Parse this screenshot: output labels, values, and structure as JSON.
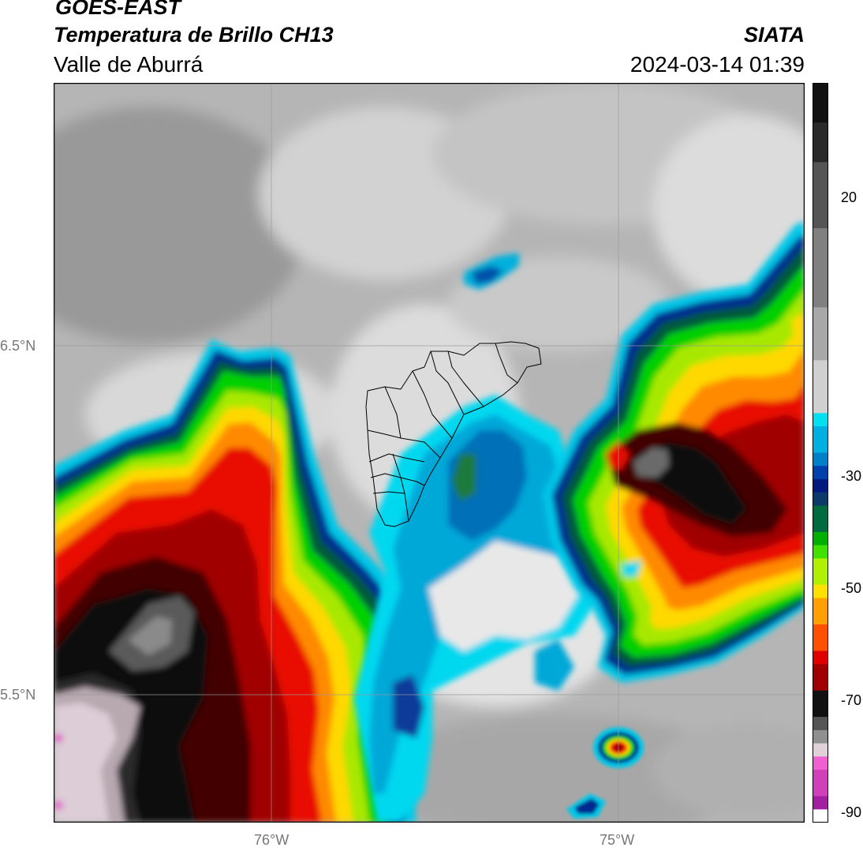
{
  "header": {
    "satellite": "GOES-EAST",
    "product": "Temperatura de Brillo CH13",
    "region": "Valle de Aburrá",
    "source": "SIATA",
    "datetime": "2024-03-14 01:39"
  },
  "map": {
    "lat_labels": [
      "6.5°N",
      "5.5°N"
    ],
    "lon_labels": [
      "76°W",
      "75°W"
    ],
    "colorbar_ticks": [
      "20",
      "-30",
      "-50",
      "-70",
      "-90"
    ],
    "colorbar_range_c": [
      -90,
      30
    ]
  }
}
